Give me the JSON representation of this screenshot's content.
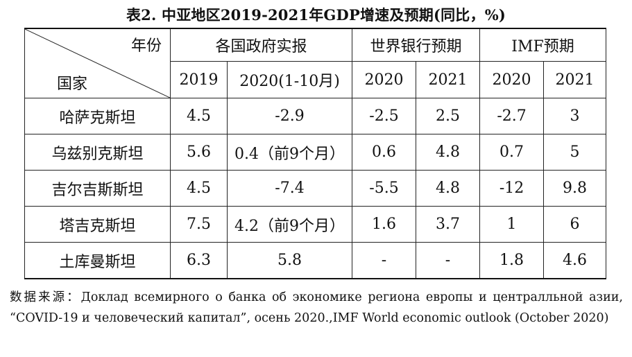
{
  "title": "表2. 中亚地区2019-2021年GDP增速及预期(同比，%)",
  "header": {
    "corner_year": "年份",
    "corner_country": "国家",
    "group_gov": "各国政府实报",
    "group_wb": "世界银行预期",
    "group_imf": "IMF预期",
    "years": [
      "2019",
      "2020(1-10月)",
      "2020",
      "2021",
      "2020",
      "2021"
    ]
  },
  "rows": [
    {
      "country": "哈萨克斯坦",
      "y2019": "4.5",
      "y2020_gov": "-2.9",
      "wb2020": "-2.5",
      "wb2021": "2.5",
      "imf2020": "-2.7",
      "imf2021": "3"
    },
    {
      "country": "乌兹别克斯坦",
      "y2019": "5.6",
      "y2020_gov": "0.4（前9个月）",
      "wb2020": "0.6",
      "wb2021": "4.8",
      "imf2020": "0.7",
      "imf2021": "5"
    },
    {
      "country": "吉尔吉斯斯坦",
      "y2019": "4.5",
      "y2020_gov": "-7.4",
      "wb2020": "-5.5",
      "wb2021": "4.8",
      "imf2020": "-12",
      "imf2021": "9.8"
    },
    {
      "country": "塔吉克斯坦",
      "y2019": "7.5",
      "y2020_gov": "4.2（前9个月）",
      "wb2020": "1.6",
      "wb2021": "3.7",
      "imf2020": "1",
      "imf2021": "6"
    },
    {
      "country": "土库曼斯坦",
      "y2019": "6.3",
      "y2020_gov": "5.8",
      "wb2020": "-",
      "wb2021": "-",
      "imf2020": "1.8",
      "imf2021": "4.6"
    }
  ],
  "source": "数据来源：Доклад всемирного о банка об экономике региона европы и централльной азии, “COVID-19 и человеческий капитал”, осень 2020.,IMF World economic outlook (October 2020)"
}
